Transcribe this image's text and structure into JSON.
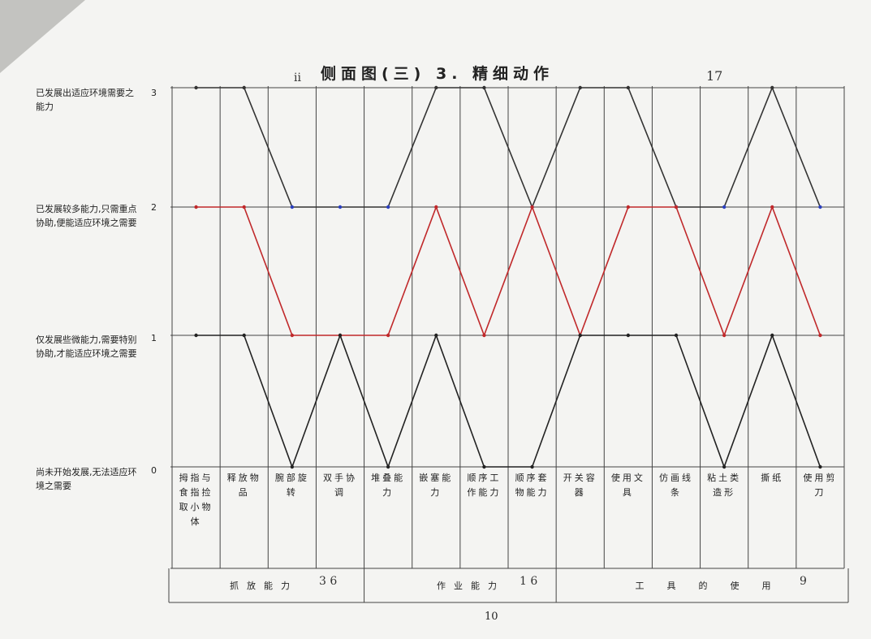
{
  "title": "侧面图(三) 3. 精细动作",
  "handwritten_marks": [
    "ii",
    "17"
  ],
  "levels": [
    {
      "value": "3",
      "description": "已发展出适应环境需要之能力"
    },
    {
      "value": "2",
      "description": "已发展较多能力,只需重点协助,便能适应环境之需要"
    },
    {
      "value": "1",
      "description": "仅发展些微能力,需要特别协助,才能适应环境之需要"
    },
    {
      "value": "0",
      "description": "尚未开始发展,无法适应环境之需要"
    }
  ],
  "categories": [
    "拇指与食指捡取小物体",
    "释放物品",
    "腕部旋转",
    "双手协调",
    "堆叠能力",
    "嵌塞能力",
    "顺序工作能力",
    "顺序套物能力",
    "开关容器",
    "使用文具",
    "仿画线条",
    "粘土类造形",
    "撕纸",
    "使用剪刀"
  ],
  "groups": [
    {
      "label": "抓放能力",
      "note": "3 6"
    },
    {
      "label": "作业能力",
      "note": "1 6"
    },
    {
      "label": "工具的使用",
      "note": "9"
    }
  ],
  "page_number": "10",
  "chart_data": {
    "type": "line",
    "x": [
      "拇指与食指捡取小物体",
      "释放物品",
      "腕部旋转",
      "双手协调",
      "堆叠能力",
      "嵌塞能力",
      "顺序工作能力",
      "顺序套物能力",
      "开关容器",
      "使用文具",
      "仿画线条",
      "粘土类造形",
      "撕纸",
      "使用剪刀"
    ],
    "ylim": [
      0,
      3
    ],
    "yticks": [
      "0",
      "1",
      "2",
      "3"
    ],
    "series": [
      {
        "color": "#333333",
        "accent": "#2b3fbf",
        "values": [
          3,
          3,
          2,
          2,
          2,
          3,
          3,
          2,
          3,
          3,
          2,
          2,
          3,
          2
        ]
      },
      {
        "color": "#c0282a",
        "values": [
          2,
          2,
          1,
          1,
          1,
          2,
          1,
          2,
          1,
          2,
          2,
          1,
          2,
          1
        ]
      },
      {
        "color": "#222222",
        "values": [
          1,
          1,
          0,
          1,
          0,
          1,
          0,
          0,
          1,
          1,
          1,
          0,
          1,
          0
        ]
      }
    ]
  }
}
